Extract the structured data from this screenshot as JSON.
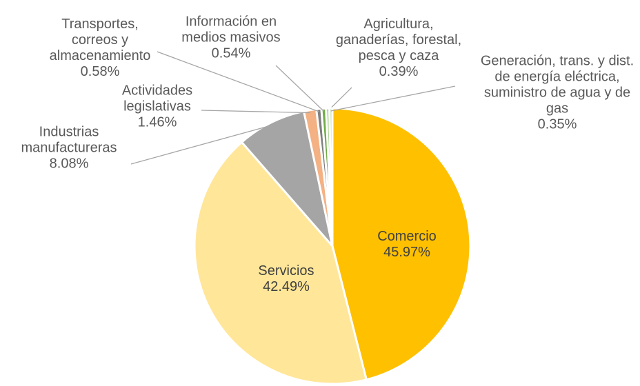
{
  "chart_data": {
    "type": "pie",
    "categories": [
      "Comercio",
      "Servicios",
      "Industrias manufactureras",
      "Actividades legislativas",
      "Transportes, correos y almacenamiento",
      "Información en medios masivos",
      "Agricultura, ganaderías, forestal, pesca y caza",
      "Generación, trans. y dist. de energía eléctrica, suministro de agua y de gas"
    ],
    "values": [
      45.97,
      42.49,
      8.08,
      1.46,
      0.58,
      0.54,
      0.39,
      0.35
    ],
    "value_labels": [
      "45.97%",
      "42.49%",
      "8.08%",
      "1.46%",
      "0.58%",
      "0.54%",
      "0.39%",
      "0.35%"
    ],
    "colors": [
      "#ffc000",
      "#ffe699",
      "#a5a5a5",
      "#f4b183",
      "#7f7f7f",
      "#70ad47",
      "#a9d18e",
      "#c5e0b4"
    ]
  }
}
